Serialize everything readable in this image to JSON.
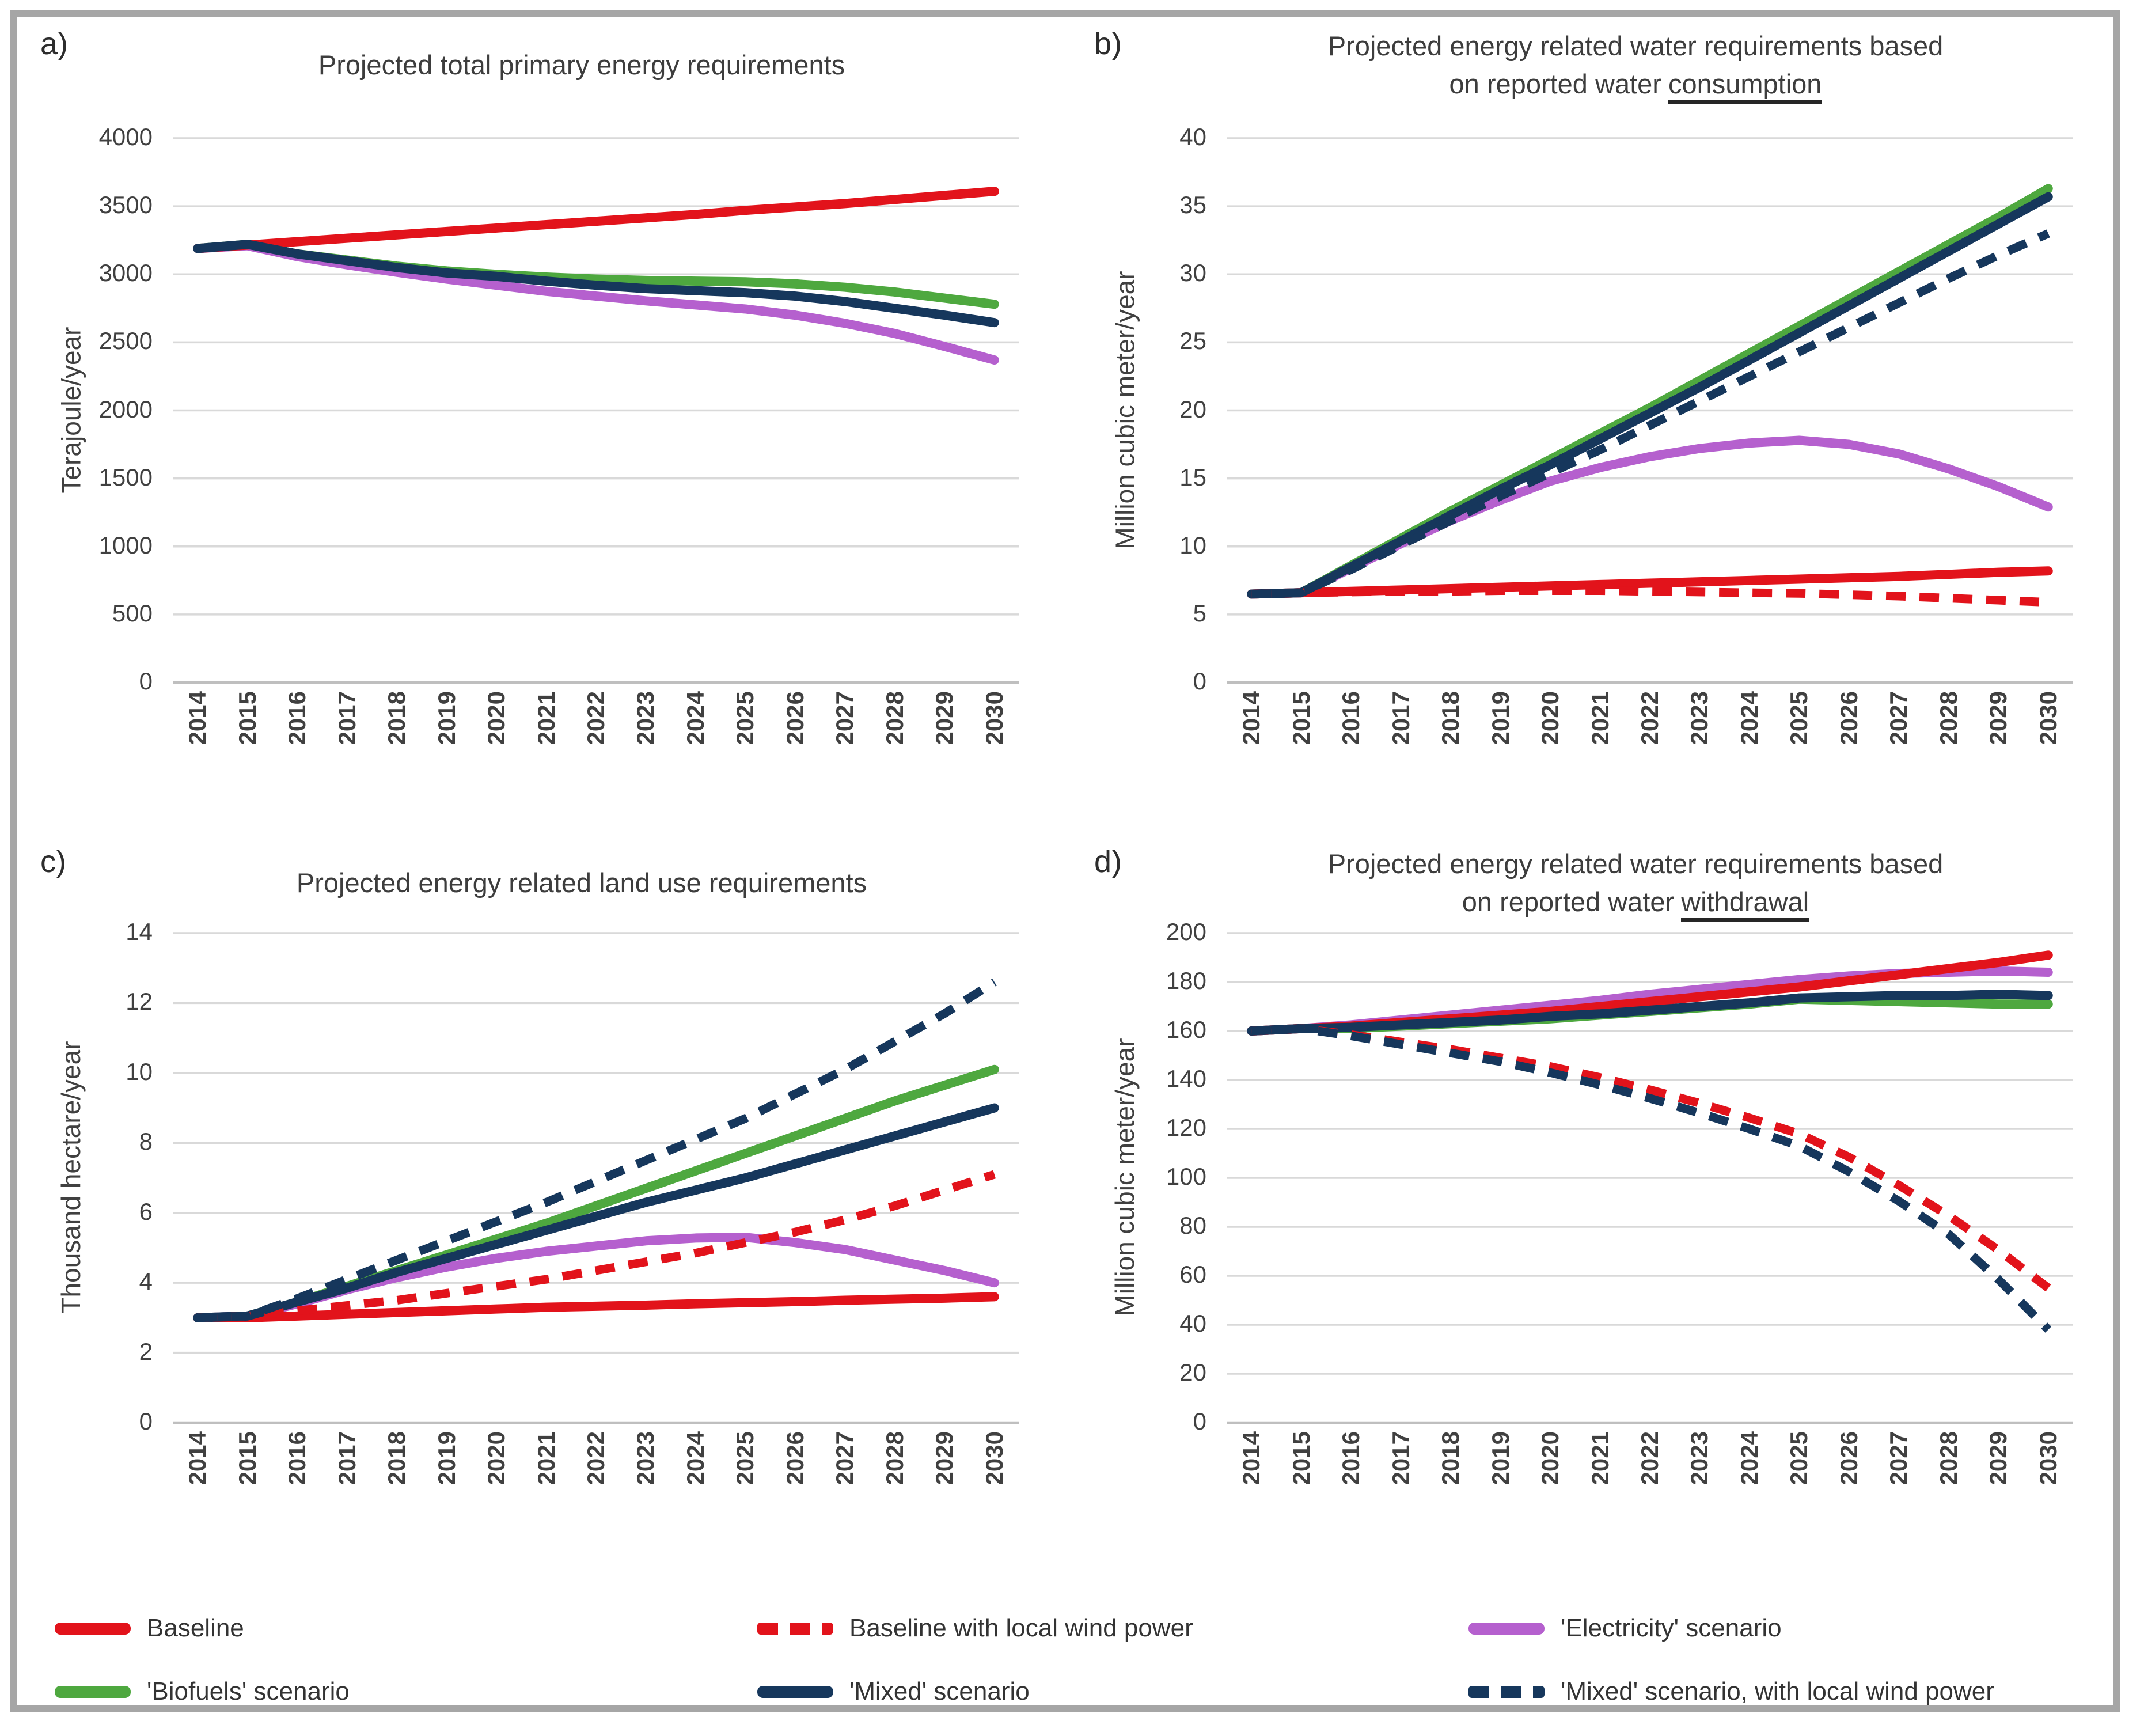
{
  "frame": {
    "border_color": "#a6a6a6",
    "background": "#ffffff"
  },
  "palette": {
    "red": "#e2131b",
    "green": "#4ea83f",
    "navy": "#16375c",
    "purple": "#b560ce",
    "gridline": "#d9d9d9",
    "axis_line": "#bfbfbf",
    "text": "#404040"
  },
  "legend": {
    "position": "bottom",
    "items": [
      {
        "label": "Baseline",
        "color": "#e2131b",
        "dashed": false
      },
      {
        "label": "Baseline with local wind power",
        "color": "#e2131b",
        "dashed": true
      },
      {
        "label": "'Electricity' scenario",
        "color": "#b560ce",
        "dashed": false
      },
      {
        "label": "'Biofuels' scenario",
        "color": "#4ea83f",
        "dashed": false
      },
      {
        "label": "'Mixed' scenario",
        "color": "#16375c",
        "dashed": false
      },
      {
        "label": "'Mixed' scenario, with local wind power",
        "color": "#16375c",
        "dashed": true
      }
    ]
  },
  "chart_data": [
    {
      "id": "a",
      "panel_label": "a)",
      "type": "line",
      "title_line1": "Projected total primary energy requirements",
      "title_line2": "",
      "title_underline": "",
      "ylabel": "Terajoule/year",
      "ylim": [
        0,
        4000
      ],
      "ytick_step": 500,
      "grid": true,
      "legend_position": "bottom",
      "x": [
        "2014",
        "2015",
        "2016",
        "2017",
        "2018",
        "2019",
        "2020",
        "2021",
        "2022",
        "2023",
        "2024",
        "2025",
        "2026",
        "2027",
        "2028",
        "2029",
        "2030"
      ],
      "series": [
        {
          "name": "'Biofuels' scenario",
          "color": "#4ea83f",
          "dashed": false,
          "values": [
            3190,
            3220,
            3150,
            3105,
            3060,
            3025,
            3000,
            2980,
            2965,
            2955,
            2950,
            2945,
            2930,
            2905,
            2870,
            2825,
            2780
          ]
        },
        {
          "name": "'Electricity' scenario",
          "color": "#b560ce",
          "dashed": false,
          "values": [
            3190,
            3210,
            3130,
            3070,
            3015,
            2965,
            2920,
            2875,
            2840,
            2805,
            2775,
            2745,
            2700,
            2640,
            2565,
            2470,
            2370
          ]
        },
        {
          "name": "Baseline",
          "color": "#e2131b",
          "dashed": false,
          "values": [
            3190,
            3215,
            3240,
            3265,
            3290,
            3315,
            3340,
            3365,
            3390,
            3415,
            3440,
            3470,
            3495,
            3520,
            3550,
            3580,
            3610
          ]
        },
        {
          "name": "'Mixed' scenario",
          "color": "#16375c",
          "dashed": false,
          "values": [
            3190,
            3220,
            3150,
            3100,
            3050,
            3010,
            2985,
            2950,
            2920,
            2895,
            2880,
            2865,
            2840,
            2800,
            2750,
            2700,
            2645
          ]
        }
      ]
    },
    {
      "id": "b",
      "panel_label": "b)",
      "type": "line",
      "title_line1": "Projected energy related water requirements based",
      "title_line2": "on reported water",
      "title_underline": "consumption",
      "ylabel": "Million cubic meter/year",
      "ylim": [
        0,
        40
      ],
      "ytick_step": 5,
      "grid": true,
      "legend_position": "bottom",
      "x": [
        "2014",
        "2015",
        "2016",
        "2017",
        "2018",
        "2019",
        "2020",
        "2021",
        "2022",
        "2023",
        "2024",
        "2025",
        "2026",
        "2027",
        "2028",
        "2029",
        "2030"
      ],
      "series": [
        {
          "name": "'Biofuels' scenario",
          "color": "#4ea83f",
          "dashed": false,
          "values": [
            6.5,
            6.6,
            8.6,
            10.6,
            12.6,
            14.5,
            16.4,
            18.3,
            20.2,
            22.2,
            24.2,
            26.2,
            28.2,
            30.2,
            32.2,
            34.2,
            36.3
          ]
        },
        {
          "name": "'Electricity' scenario",
          "color": "#b560ce",
          "dashed": false,
          "values": [
            6.5,
            6.6,
            8.4,
            10.2,
            11.9,
            13.4,
            14.8,
            15.8,
            16.6,
            17.2,
            17.6,
            17.8,
            17.5,
            16.8,
            15.7,
            14.4,
            12.9
          ]
        },
        {
          "name": "Baseline",
          "color": "#e2131b",
          "dashed": false,
          "values": [
            6.5,
            6.6,
            6.7,
            6.8,
            6.9,
            7.0,
            7.1,
            7.2,
            7.3,
            7.4,
            7.5,
            7.6,
            7.7,
            7.8,
            7.95,
            8.1,
            8.2
          ]
        },
        {
          "name": "'Mixed' scenario",
          "color": "#16375c",
          "dashed": false,
          "values": [
            6.5,
            6.6,
            8.5,
            10.4,
            12.3,
            14.2,
            16.0,
            17.9,
            19.8,
            21.7,
            23.7,
            25.7,
            27.7,
            29.7,
            31.7,
            33.7,
            35.7
          ]
        },
        {
          "name": "Baseline with local wind power",
          "color": "#e2131b",
          "dashed": true,
          "values": [
            6.5,
            6.6,
            6.65,
            6.7,
            6.7,
            6.75,
            6.75,
            6.75,
            6.7,
            6.65,
            6.6,
            6.55,
            6.45,
            6.35,
            6.2,
            6.05,
            5.9
          ]
        },
        {
          "name": "'Mixed' scenario, with local wind power",
          "color": "#16375c",
          "dashed": true,
          "values": [
            6.5,
            6.6,
            8.3,
            10.1,
            11.9,
            13.7,
            15.4,
            17.1,
            18.9,
            20.7,
            22.5,
            24.3,
            26.1,
            27.9,
            29.7,
            31.4,
            33.0
          ]
        }
      ]
    },
    {
      "id": "c",
      "panel_label": "c)",
      "type": "line",
      "title_line1": "Projected energy related land use requirements",
      "title_line2": "",
      "title_underline": "",
      "ylabel": "Thousand hectare/year",
      "ylim": [
        0,
        14
      ],
      "ytick_step": 2,
      "grid": true,
      "legend_position": "bottom",
      "x": [
        "2014",
        "2015",
        "2016",
        "2017",
        "2018",
        "2019",
        "2020",
        "2021",
        "2022",
        "2023",
        "2024",
        "2025",
        "2026",
        "2027",
        "2028",
        "2029",
        "2030"
      ],
      "series": [
        {
          "name": "'Biofuels' scenario",
          "color": "#4ea83f",
          "dashed": false,
          "values": [
            3.0,
            3.05,
            3.45,
            3.9,
            4.35,
            4.8,
            5.25,
            5.7,
            6.2,
            6.7,
            7.2,
            7.7,
            8.2,
            8.7,
            9.2,
            9.65,
            10.1
          ]
        },
        {
          "name": "'Electricity' scenario",
          "color": "#b560ce",
          "dashed": false,
          "values": [
            3.0,
            3.05,
            3.4,
            3.8,
            4.15,
            4.45,
            4.7,
            4.9,
            5.05,
            5.2,
            5.28,
            5.3,
            5.15,
            4.95,
            4.65,
            4.35,
            4.0
          ]
        },
        {
          "name": "Baseline",
          "color": "#e2131b",
          "dashed": false,
          "values": [
            3.0,
            3.0,
            3.05,
            3.1,
            3.15,
            3.2,
            3.25,
            3.3,
            3.33,
            3.36,
            3.4,
            3.43,
            3.46,
            3.5,
            3.53,
            3.56,
            3.6
          ]
        },
        {
          "name": "'Mixed' scenario",
          "color": "#16375c",
          "dashed": false,
          "values": [
            3.0,
            3.05,
            3.45,
            3.85,
            4.3,
            4.7,
            5.1,
            5.5,
            5.9,
            6.3,
            6.65,
            7.0,
            7.4,
            7.8,
            8.2,
            8.6,
            9.0
          ]
        },
        {
          "name": "Baseline with local wind power",
          "color": "#e2131b",
          "dashed": true,
          "values": [
            3.0,
            3.05,
            3.2,
            3.35,
            3.5,
            3.7,
            3.9,
            4.1,
            4.35,
            4.6,
            4.85,
            5.15,
            5.45,
            5.8,
            6.2,
            6.65,
            7.1
          ]
        },
        {
          "name": "'Mixed' scenario, with local wind power",
          "color": "#16375c",
          "dashed": true,
          "values": [
            3.0,
            3.05,
            3.55,
            4.1,
            4.65,
            5.2,
            5.75,
            6.3,
            6.9,
            7.5,
            8.1,
            8.7,
            9.4,
            10.1,
            10.9,
            11.7,
            12.6
          ]
        }
      ]
    },
    {
      "id": "d",
      "panel_label": "d)",
      "type": "line",
      "title_line1": "Projected energy related water requirements based",
      "title_line2": "on reported water",
      "title_underline": "withdrawal",
      "ylabel": "Million cubic meter/year",
      "ylim": [
        0,
        200
      ],
      "ytick_step": 20,
      "grid": true,
      "legend_position": "bottom",
      "x": [
        "2014",
        "2015",
        "2016",
        "2017",
        "2018",
        "2019",
        "2020",
        "2021",
        "2022",
        "2023",
        "2024",
        "2025",
        "2026",
        "2027",
        "2028",
        "2029",
        "2030"
      ],
      "series": [
        {
          "name": "'Biofuels' scenario",
          "color": "#4ea83f",
          "dashed": false,
          "values": [
            160,
            161,
            161,
            162,
            163,
            164,
            165,
            166.5,
            168,
            169.5,
            171,
            173,
            172.5,
            172,
            171.5,
            171,
            171
          ]
        },
        {
          "name": "'Electricity' scenario",
          "color": "#b560ce",
          "dashed": false,
          "values": [
            160,
            161,
            162.5,
            164.5,
            166.5,
            168.5,
            170.5,
            172.5,
            175,
            177,
            179,
            181,
            182.5,
            183.5,
            184,
            184.5,
            184
          ]
        },
        {
          "name": "Baseline",
          "color": "#e2131b",
          "dashed": false,
          "values": [
            160,
            161,
            162,
            163.5,
            165,
            166.5,
            168,
            170,
            172,
            174,
            176,
            178,
            180.5,
            183,
            185.5,
            188,
            191
          ]
        },
        {
          "name": "'Mixed' scenario",
          "color": "#16375c",
          "dashed": false,
          "values": [
            160,
            161,
            161.5,
            162.5,
            163.5,
            164.5,
            166,
            167,
            168.5,
            170,
            171.5,
            173.5,
            174,
            174.5,
            174.5,
            175,
            174.5
          ]
        },
        {
          "name": "Baseline with local wind power",
          "color": "#e2131b",
          "dashed": true,
          "values": [
            160,
            161,
            158.5,
            155.5,
            152.5,
            149,
            145.5,
            141,
            136,
            130.5,
            124.5,
            118,
            108.5,
            97,
            84.5,
            70.5,
            55
          ]
        },
        {
          "name": "'Mixed' scenario, with local wind power",
          "color": "#16375c",
          "dashed": true,
          "values": [
            160,
            161,
            158,
            154.5,
            151,
            147.5,
            143,
            138,
            132.5,
            126.5,
            120,
            113,
            102.5,
            90.5,
            77,
            58.5,
            38
          ]
        }
      ]
    }
  ]
}
